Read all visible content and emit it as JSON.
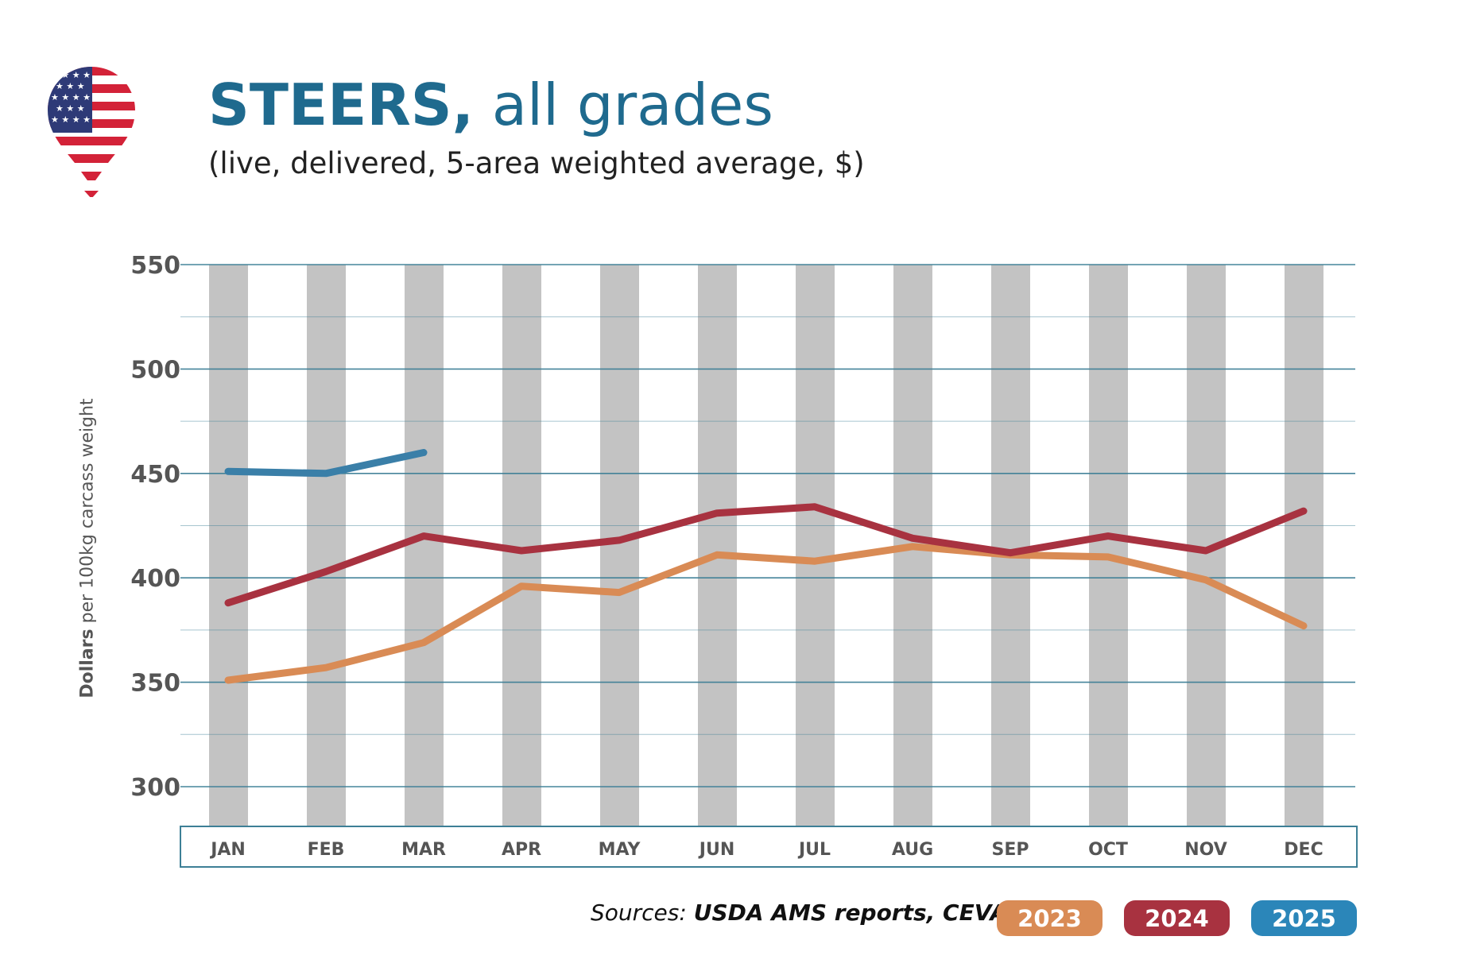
{
  "title": {
    "bold": "STEERS,",
    "rest": " all grades"
  },
  "subtitle": "(live, delivered, 5-area weighted average, $)",
  "flag_icon": "us-flag-map-pin-icon",
  "ylabel": {
    "bold": "Dollars",
    "rest": " per 100kg carcass weight"
  },
  "sources": {
    "prefix": "Sources: ",
    "bold": "USDA AMS reports, CEVA"
  },
  "colors": {
    "2023": "#d98b55",
    "2024": "#a83240",
    "2025": "#3a7fa8",
    "bars": "#c3c3c3",
    "grid": "#3d7f96",
    "axis_text": "#555555"
  },
  "legend": [
    {
      "label": "2023",
      "color": "#d98b55"
    },
    {
      "label": "2024",
      "color": "#a83240"
    },
    {
      "label": "2025",
      "color": "#2b86b9"
    }
  ],
  "chart_data": {
    "type": "line",
    "categories": [
      "JAN",
      "FEB",
      "MAR",
      "APR",
      "MAY",
      "JUN",
      "JUL",
      "AUG",
      "SEP",
      "OCT",
      "NOV",
      "DEC"
    ],
    "series": [
      {
        "name": "2023",
        "values": [
          351,
          357,
          369,
          396,
          393,
          411,
          408,
          415,
          411,
          410,
          399,
          377
        ]
      },
      {
        "name": "2024",
        "values": [
          388,
          403,
          420,
          413,
          418,
          431,
          434,
          419,
          412,
          420,
          413,
          432
        ]
      },
      {
        "name": "2025",
        "values": [
          451,
          450,
          460,
          null,
          null,
          null,
          null,
          null,
          null,
          null,
          null,
          null
        ]
      }
    ],
    "yticks": [
      300,
      350,
      400,
      450,
      500,
      550
    ],
    "ylim": [
      282,
      550
    ],
    "title": "STEERS, all grades",
    "ylabel": "Dollars per 100kg carcass weight",
    "grid": true
  }
}
